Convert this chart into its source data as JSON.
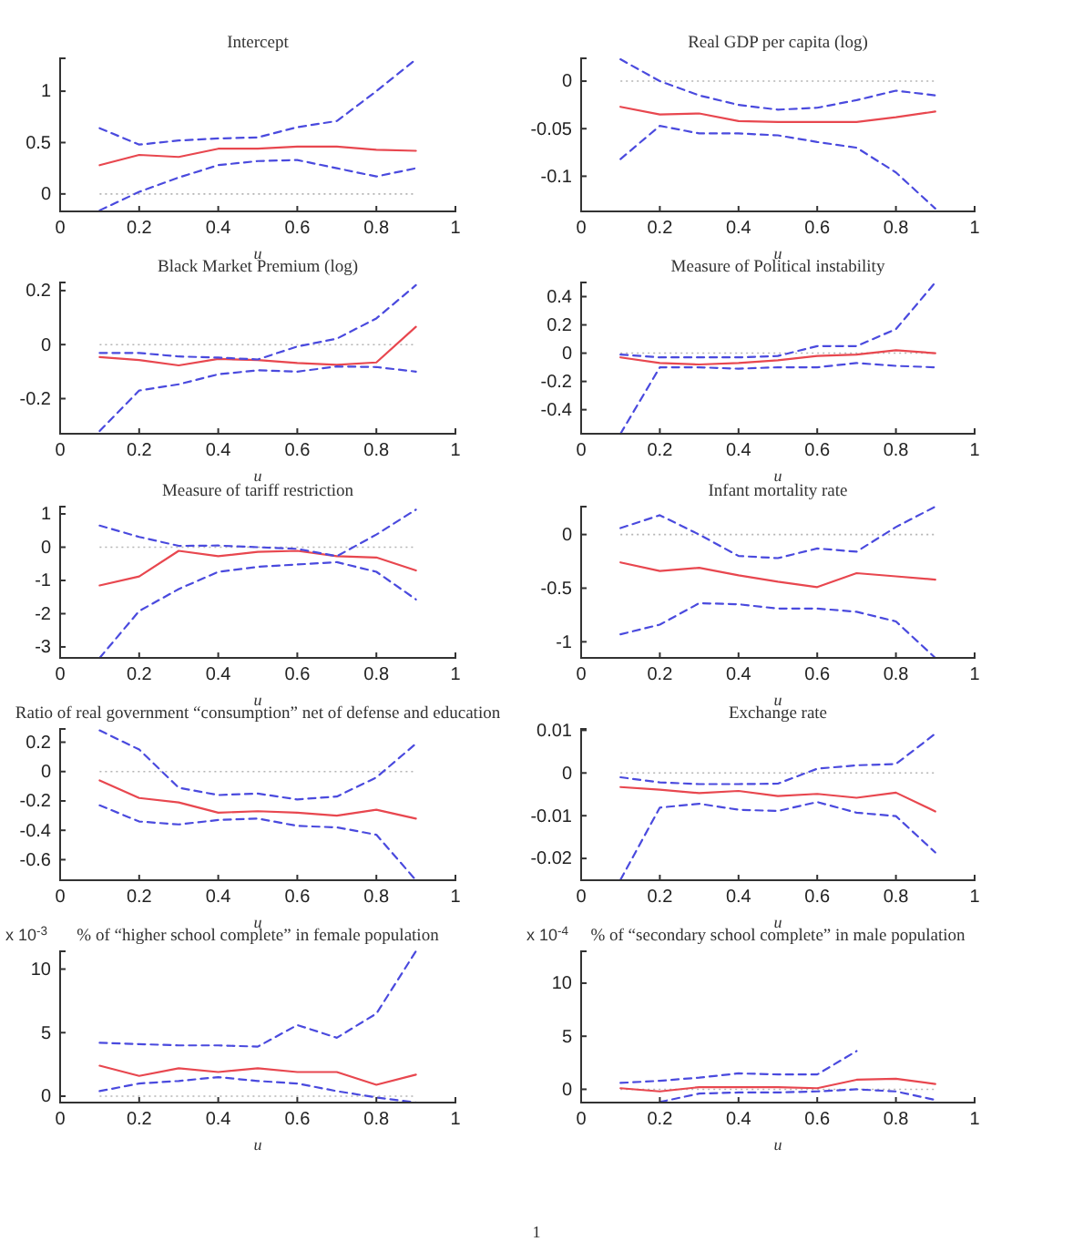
{
  "chart_data": [
    {
      "type": "line",
      "title": "Intercept",
      "xlabel": "u",
      "x": [
        0.1,
        0.2,
        0.3,
        0.4,
        0.5,
        0.6,
        0.7,
        0.8,
        0.9
      ],
      "xlim": [
        0,
        1
      ],
      "xticks": [
        0,
        0.2,
        0.4,
        0.6,
        0.8,
        1
      ],
      "ylim": [
        -0.17,
        1.32
      ],
      "yticks": [
        0,
        0.5,
        1
      ],
      "ref_lines": [
        {
          "axis": "y",
          "value": 0,
          "color": "#b4b4b4",
          "line_style": "dotted"
        }
      ],
      "series": [
        {
          "color": "#e8474f",
          "line_style": "solid",
          "values": [
            0.28,
            0.38,
            0.36,
            0.44,
            0.44,
            0.46,
            0.46,
            0.43,
            0.42
          ]
        },
        {
          "color": "#4a4ade",
          "line_style": "dashed",
          "values": [
            0.64,
            0.48,
            0.52,
            0.54,
            0.55,
            0.65,
            0.71,
            1.0,
            1.31
          ]
        },
        {
          "color": "#4a4ade",
          "line_style": "dashed",
          "values": [
            -0.16,
            0.02,
            0.16,
            0.28,
            0.32,
            0.33,
            0.25,
            0.17,
            0.25
          ]
        }
      ]
    },
    {
      "type": "line",
      "title": "Real GDP per capita (log)",
      "xlabel": "u",
      "x": [
        0.1,
        0.2,
        0.3,
        0.4,
        0.5,
        0.6,
        0.7,
        0.8,
        0.9
      ],
      "xlim": [
        0,
        1
      ],
      "xticks": [
        0,
        0.2,
        0.4,
        0.6,
        0.8,
        1
      ],
      "ylim": [
        -0.137,
        0.024
      ],
      "yticks": [
        -0.1,
        -0.05,
        0
      ],
      "ref_lines": [
        {
          "axis": "y",
          "value": 0,
          "color": "#b4b4b4",
          "line_style": "dotted"
        }
      ],
      "series": [
        {
          "color": "#e8474f",
          "line_style": "solid",
          "values": [
            -0.027,
            -0.035,
            -0.034,
            -0.042,
            -0.043,
            -0.043,
            -0.043,
            -0.038,
            -0.032
          ]
        },
        {
          "color": "#4a4ade",
          "line_style": "dashed",
          "values": [
            0.023,
            0,
            -0.015,
            -0.025,
            -0.03,
            -0.028,
            -0.02,
            -0.01,
            -0.015
          ]
        },
        {
          "color": "#4a4ade",
          "line_style": "dashed",
          "values": [
            -0.082,
            -0.047,
            -0.055,
            -0.055,
            -0.057,
            -0.064,
            -0.07,
            -0.096,
            -0.134
          ]
        }
      ]
    },
    {
      "type": "line",
      "title": "Black Market Premium (log)",
      "xlabel": "u",
      "x": [
        0.1,
        0.2,
        0.3,
        0.4,
        0.5,
        0.6,
        0.7,
        0.8,
        0.9
      ],
      "xlim": [
        0,
        1
      ],
      "xticks": [
        0,
        0.2,
        0.4,
        0.6,
        0.8,
        1
      ],
      "ylim": [
        -0.33,
        0.23
      ],
      "yticks": [
        -0.2,
        0,
        0.2
      ],
      "ref_lines": [
        {
          "axis": "y",
          "value": 0,
          "color": "#b4b4b4",
          "line_style": "dotted"
        }
      ],
      "series": [
        {
          "color": "#e8474f",
          "line_style": "solid",
          "values": [
            -0.046,
            -0.057,
            -0.077,
            -0.053,
            -0.057,
            -0.068,
            -0.075,
            -0.066,
            0.066
          ]
        },
        {
          "color": "#4a4ade",
          "line_style": "dashed",
          "values": [
            -0.031,
            -0.031,
            -0.044,
            -0.048,
            -0.055,
            -0.007,
            0.022,
            0.097,
            0.22
          ]
        },
        {
          "color": "#4a4ade",
          "line_style": "dashed",
          "values": [
            -0.32,
            -0.17,
            -0.147,
            -0.11,
            -0.095,
            -0.1,
            -0.081,
            -0.083,
            -0.1
          ]
        }
      ]
    },
    {
      "type": "line",
      "title": "Measure of Political instability",
      "xlabel": "u",
      "x": [
        0.1,
        0.2,
        0.3,
        0.4,
        0.5,
        0.6,
        0.7,
        0.8,
        0.9
      ],
      "xlim": [
        0,
        1
      ],
      "xticks": [
        0,
        0.2,
        0.4,
        0.6,
        0.8,
        1
      ],
      "ylim": [
        -0.57,
        0.5
      ],
      "yticks": [
        -0.4,
        -0.2,
        0,
        0.2,
        0.4
      ],
      "ref_lines": [
        {
          "axis": "y",
          "value": 0,
          "color": "#b4b4b4",
          "line_style": "dotted"
        }
      ],
      "series": [
        {
          "color": "#e8474f",
          "line_style": "solid",
          "values": [
            -0.03,
            -0.07,
            -0.08,
            -0.07,
            -0.05,
            -0.02,
            -0.01,
            0.02,
            0
          ]
        },
        {
          "color": "#4a4ade",
          "line_style": "dashed",
          "values": [
            -0.01,
            -0.03,
            -0.03,
            -0.03,
            -0.02,
            0.05,
            0.05,
            0.17,
            0.5
          ]
        },
        {
          "color": "#4a4ade",
          "line_style": "dashed",
          "values": [
            -0.57,
            -0.1,
            -0.1,
            -0.11,
            -0.1,
            -0.1,
            -0.07,
            -0.09,
            -0.1
          ]
        }
      ]
    },
    {
      "type": "line",
      "title": "Measure of tariff restriction",
      "xlabel": "u",
      "x": [
        0.1,
        0.2,
        0.3,
        0.4,
        0.5,
        0.6,
        0.7,
        0.8,
        0.9
      ],
      "xlim": [
        0,
        1
      ],
      "xticks": [
        0,
        0.2,
        0.4,
        0.6,
        0.8,
        1
      ],
      "ylim": [
        -3.33,
        1.22
      ],
      "yticks": [
        -3,
        -2,
        -1,
        0,
        1
      ],
      "ref_lines": [
        {
          "axis": "y",
          "value": 0,
          "color": "#b4b4b4",
          "line_style": "dotted"
        }
      ],
      "series": [
        {
          "color": "#e8474f",
          "line_style": "solid",
          "values": [
            -1.15,
            -0.88,
            -0.11,
            -0.27,
            -0.14,
            -0.11,
            -0.27,
            -0.31,
            -0.7
          ]
        },
        {
          "color": "#4a4ade",
          "line_style": "dashed",
          "values": [
            0.65,
            0.31,
            0.04,
            0.05,
            0,
            -0.05,
            -0.27,
            0.38,
            1.13
          ]
        },
        {
          "color": "#4a4ade",
          "line_style": "dashed",
          "values": [
            -3.33,
            -1.92,
            -1.26,
            -0.74,
            -0.59,
            -0.52,
            -0.45,
            -0.74,
            -1.57
          ]
        }
      ]
    },
    {
      "type": "line",
      "title": "Infant mortality rate",
      "xlabel": "u",
      "x": [
        0.1,
        0.2,
        0.3,
        0.4,
        0.5,
        0.6,
        0.7,
        0.8,
        0.9
      ],
      "xlim": [
        0,
        1
      ],
      "xticks": [
        0,
        0.2,
        0.4,
        0.6,
        0.8,
        1
      ],
      "ylim": [
        -1.15,
        0.26
      ],
      "yticks": [
        -1,
        -0.5,
        0
      ],
      "ref_lines": [
        {
          "axis": "y",
          "value": 0,
          "color": "#b4b4b4",
          "line_style": "dotted"
        }
      ],
      "series": [
        {
          "color": "#e8474f",
          "line_style": "solid",
          "values": [
            -0.26,
            -0.34,
            -0.31,
            -0.38,
            -0.44,
            -0.49,
            -0.36,
            -0.39,
            -0.42
          ]
        },
        {
          "color": "#4a4ade",
          "line_style": "dashed",
          "values": [
            0.06,
            0.18,
            0,
            -0.2,
            -0.22,
            -0.13,
            -0.16,
            0.07,
            0.26
          ]
        },
        {
          "color": "#4a4ade",
          "line_style": "dashed",
          "values": [
            -0.93,
            -0.84,
            -0.64,
            -0.65,
            -0.69,
            -0.69,
            -0.72,
            -0.81,
            -1.15
          ]
        }
      ]
    },
    {
      "type": "line",
      "title": "Ratio of real government “consumption” net of defense and education",
      "xlabel": "u",
      "x": [
        0.1,
        0.2,
        0.3,
        0.4,
        0.5,
        0.6,
        0.7,
        0.8,
        0.9
      ],
      "xlim": [
        0,
        1
      ],
      "xticks": [
        0,
        0.2,
        0.4,
        0.6,
        0.8,
        1
      ],
      "ylim": [
        -0.74,
        0.29
      ],
      "yticks": [
        -0.6,
        -0.4,
        -0.2,
        0,
        0.2
      ],
      "ref_lines": [
        {
          "axis": "y",
          "value": 0,
          "color": "#b4b4b4",
          "line_style": "dotted"
        }
      ],
      "series": [
        {
          "color": "#e8474f",
          "line_style": "solid",
          "values": [
            -0.06,
            -0.18,
            -0.21,
            -0.28,
            -0.27,
            -0.28,
            -0.3,
            -0.26,
            -0.32
          ]
        },
        {
          "color": "#4a4ade",
          "line_style": "dashed",
          "values": [
            0.28,
            0.15,
            -0.11,
            -0.16,
            -0.15,
            -0.19,
            -0.17,
            -0.04,
            0.19
          ]
        },
        {
          "color": "#4a4ade",
          "line_style": "dashed",
          "values": [
            -0.23,
            -0.34,
            -0.36,
            -0.33,
            -0.32,
            -0.37,
            -0.38,
            -0.43,
            -0.74
          ]
        }
      ]
    },
    {
      "type": "line",
      "title": "Exchange rate",
      "xlabel": "u",
      "x": [
        0.1,
        0.2,
        0.3,
        0.4,
        0.5,
        0.6,
        0.7,
        0.8,
        0.9
      ],
      "xlim": [
        0,
        1
      ],
      "xticks": [
        0,
        0.2,
        0.4,
        0.6,
        0.8,
        1
      ],
      "ylim": [
        -0.0251,
        0.0103
      ],
      "yticks": [
        -0.02,
        -0.01,
        0,
        0.01
      ],
      "ref_lines": [
        {
          "axis": "y",
          "value": 0,
          "color": "#b4b4b4",
          "line_style": "dotted"
        }
      ],
      "series": [
        {
          "color": "#e8474f",
          "line_style": "solid",
          "values": [
            -0.0033,
            -0.0039,
            -0.0047,
            -0.0042,
            -0.0054,
            -0.0049,
            -0.0058,
            -0.0046,
            -0.009
          ]
        },
        {
          "color": "#4a4ade",
          "line_style": "dashed",
          "values": [
            -0.001,
            -0.0022,
            -0.0026,
            -0.0026,
            -0.0025,
            0.001,
            0.0018,
            0.0021,
            0.0092
          ]
        },
        {
          "color": "#4a4ade",
          "line_style": "dashed",
          "values": [
            -0.025,
            -0.0081,
            -0.0072,
            -0.0086,
            -0.0089,
            -0.0068,
            -0.0093,
            -0.0101,
            -0.0186
          ]
        }
      ]
    },
    {
      "type": "line",
      "title": "% of “higher school complete” in female population",
      "xlabel": "u",
      "annotations": [
        "x 10$^{-3}$"
      ],
      "x": [
        0.1,
        0.2,
        0.3,
        0.4,
        0.5,
        0.6,
        0.7,
        0.8,
        0.9
      ],
      "xlim": [
        0,
        1
      ],
      "xticks": [
        0,
        0.2,
        0.4,
        0.6,
        0.8,
        1
      ],
      "ylim": [
        -0.5,
        11.4
      ],
      "yticks": [
        0,
        5,
        10
      ],
      "ref_lines": [
        {
          "axis": "y",
          "value": 0,
          "color": "#b4b4b4",
          "line_style": "dotted"
        }
      ],
      "series": [
        {
          "color": "#e8474f",
          "line_style": "solid",
          "values": [
            2.4,
            1.6,
            2.2,
            1.9,
            2.2,
            1.9,
            1.9,
            0.9,
            1.7
          ]
        },
        {
          "color": "#4a4ade",
          "line_style": "dashed",
          "values": [
            4.2,
            4.1,
            4.0,
            4.0,
            3.9,
            5.6,
            4.6,
            6.5,
            11.4
          ]
        },
        {
          "color": "#4a4ade",
          "line_style": "dashed",
          "values": [
            0.4,
            1.0,
            1.2,
            1.5,
            1.2,
            1.0,
            0.4,
            -0.1,
            -0.5
          ]
        }
      ]
    },
    {
      "type": "line",
      "title": "% of “secondary school complete” in male population",
      "xlabel": "u",
      "annotations": [
        "x 10$^{-4}$"
      ],
      "x": [
        0.1,
        0.2,
        0.3,
        0.4,
        0.5,
        0.6,
        0.7,
        0.8,
        0.9
      ],
      "xlim": [
        0,
        1
      ],
      "xticks": [
        0,
        0.2,
        0.4,
        0.6,
        0.8,
        1
      ],
      "ylim": [
        -1.25,
        13
      ],
      "yticks": [
        0,
        5,
        10
      ],
      "ref_lines": [
        {
          "axis": "y",
          "value": 0,
          "color": "#b4b4b4",
          "line_style": "dotted"
        }
      ],
      "series": [
        {
          "color": "#e8474f",
          "line_style": "solid",
          "values": [
            0.1,
            -0.2,
            0.2,
            0.2,
            0.2,
            0.1,
            0.9,
            1.0,
            0.5
          ]
        },
        {
          "color": "#4a4ade",
          "line_style": "dashed",
          "values": [
            0.6,
            0.8,
            1.1,
            1.5,
            1.4,
            1.4,
            3.6,
            null,
            null
          ]
        },
        {
          "color": "#4a4ade",
          "line_style": "dashed",
          "values": [
            null,
            -1.2,
            -0.4,
            -0.3,
            -0.3,
            -0.2,
            0,
            -0.2,
            -1.0
          ]
        }
      ]
    },
    {
      "type": "other",
      "annotations": [
        "1"
      ]
    }
  ]
}
